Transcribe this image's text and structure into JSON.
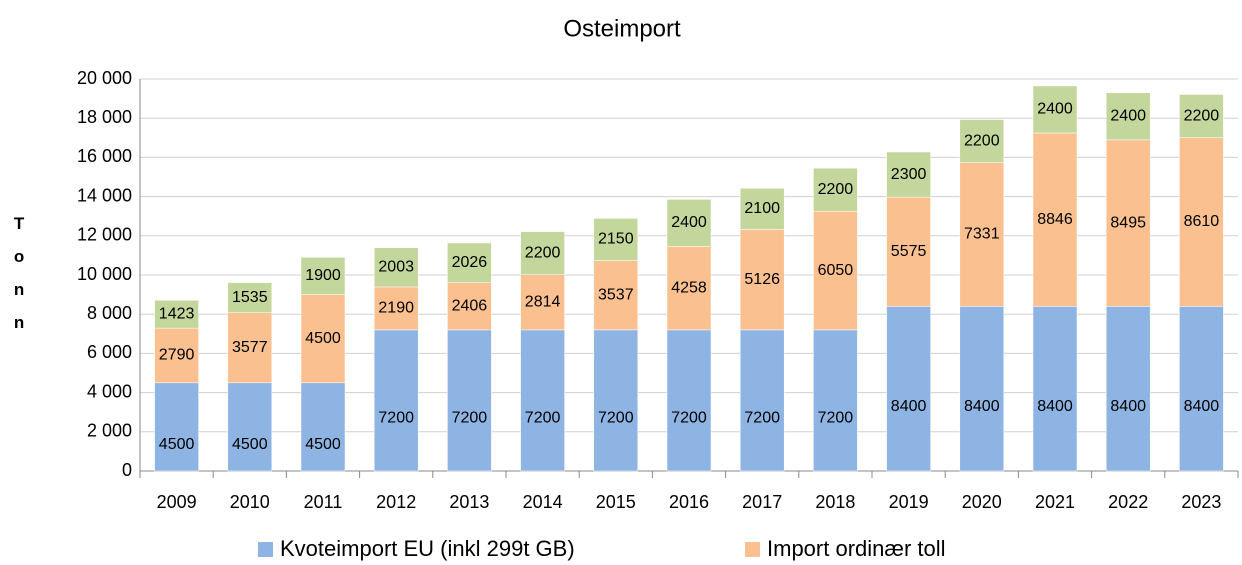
{
  "chart_data": {
    "type": "stacked_bar",
    "title": "Osteimport",
    "y_label": "Tonn",
    "categories": [
      "2009",
      "2010",
      "2011",
      "2012",
      "2013",
      "2014",
      "2015",
      "2016",
      "2017",
      "2018",
      "2019",
      "2020",
      "2021",
      "2022",
      "2023"
    ],
    "series": [
      {
        "name": "Kvoteimport EU (inkl 299t GB)",
        "color": "#8eb4e3",
        "values": [
          4500,
          4500,
          4500,
          7200,
          7200,
          7200,
          7200,
          7200,
          7200,
          7200,
          8400,
          8400,
          8400,
          8400,
          8400
        ]
      },
      {
        "name": "Import ordinær toll",
        "color": "#fac090",
        "values": [
          2790,
          3577,
          4500,
          2190,
          2406,
          2814,
          3537,
          4258,
          5126,
          6050,
          5575,
          7331,
          8846,
          8495,
          8610
        ]
      },
      {
        "color": "#c3d69b",
        "values": [
          1423,
          1535,
          1900,
          2003,
          2026,
          2200,
          2150,
          2400,
          2100,
          2200,
          2300,
          2200,
          2400,
          2400,
          2200
        ]
      }
    ],
    "ylim": [
      0,
      20000
    ],
    "yticks": [
      0,
      {
        "value": 2000,
        "label": "2 000"
      },
      {
        "value": 4000,
        "label": "4 000"
      },
      {
        "value": 6000,
        "label": "6 000"
      },
      {
        "value": 8000,
        "label": "8 000"
      },
      {
        "value": 10000,
        "label": "10 000"
      },
      {
        "value": 12000,
        "label": "12 000"
      },
      {
        "value": 14000,
        "label": "14 000"
      },
      {
        "value": 16000,
        "label": "16 000"
      },
      {
        "value": 18000,
        "label": "18 000"
      },
      {
        "value": 20000,
        "label": "20 000"
      }
    ],
    "grid": true
  }
}
